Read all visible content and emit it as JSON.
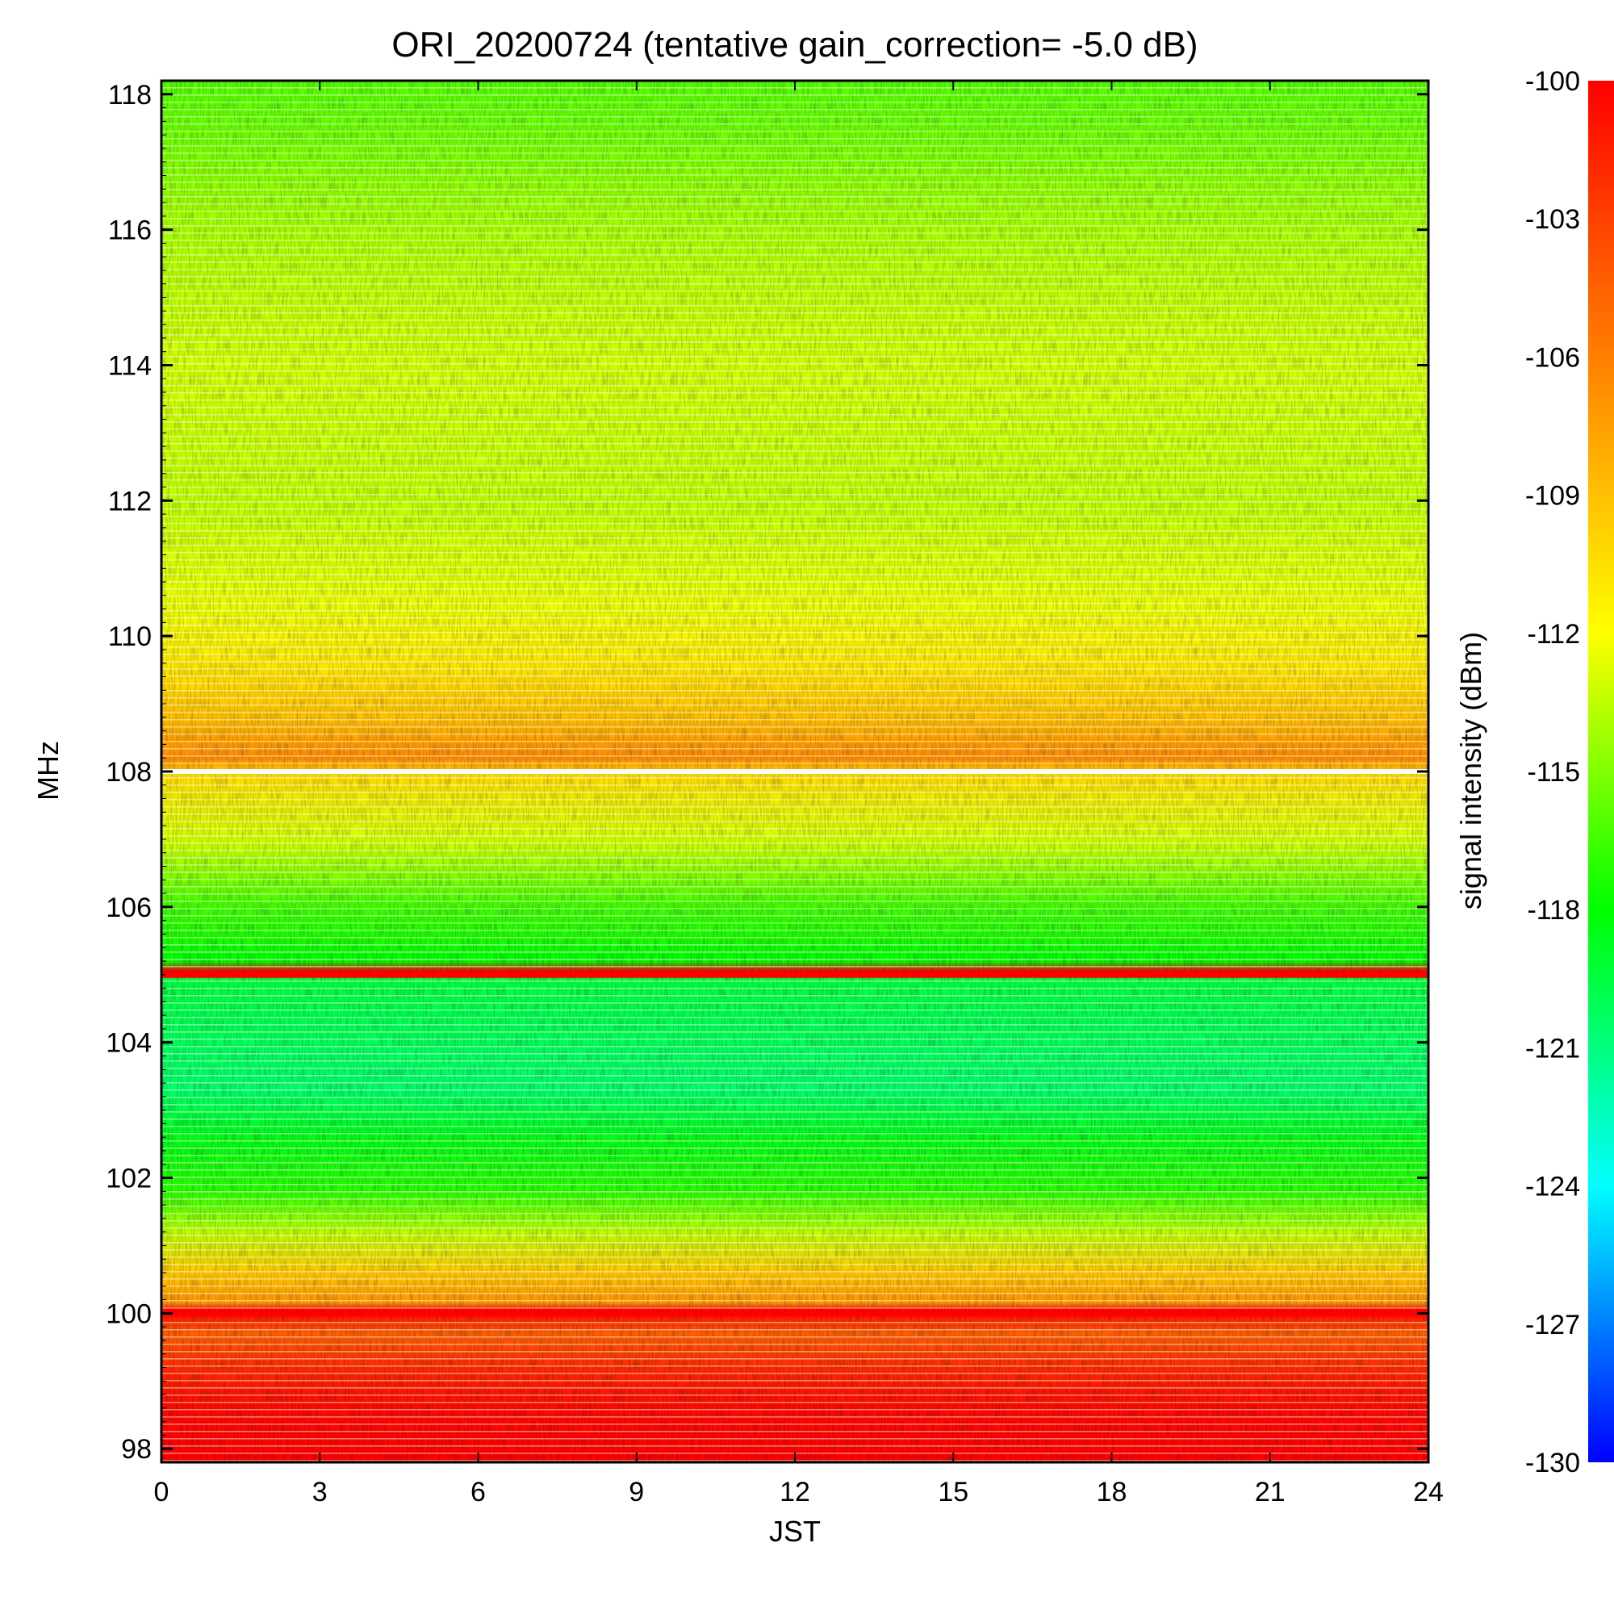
{
  "chart_data": {
    "type": "heatmap",
    "title": "ORI_20200724 (tentative gain_correction= -5.0 dB)",
    "xlabel": "JST",
    "ylabel": "MHz",
    "colorbar_label": "signal intensity (dBm)",
    "x_ticks": [
      0,
      3,
      6,
      9,
      12,
      15,
      18,
      21,
      24
    ],
    "y_ticks": [
      98,
      100,
      102,
      104,
      106,
      108,
      110,
      112,
      114,
      116,
      118
    ],
    "colorbar_ticks": [
      -100,
      -103,
      -106,
      -109,
      -112,
      -115,
      -118,
      -121,
      -124,
      -127,
      -130
    ],
    "xlim": [
      0,
      24
    ],
    "ylim": [
      97.8,
      118.2
    ],
    "clim": [
      -130,
      -100
    ],
    "colormap": [
      "#0000ff",
      "#00ffff",
      "#00ff00",
      "#ffff00",
      "#ff8000",
      "#ff0000"
    ],
    "frequency_profile": [
      {
        "freq": 97.8,
        "dbm": -100.0
      },
      {
        "freq": 98.6,
        "dbm": -100.5
      },
      {
        "freq": 99.2,
        "dbm": -102.0
      },
      {
        "freq": 99.7,
        "dbm": -104.5
      },
      {
        "freq": 100.05,
        "dbm": -100.0
      },
      {
        "freq": 100.15,
        "dbm": -107.0
      },
      {
        "freq": 100.6,
        "dbm": -109.5
      },
      {
        "freq": 101.2,
        "dbm": -113.5
      },
      {
        "freq": 101.8,
        "dbm": -117.0
      },
      {
        "freq": 102.6,
        "dbm": -118.5
      },
      {
        "freq": 103.3,
        "dbm": -120.5
      },
      {
        "freq": 104.2,
        "dbm": -120.0
      },
      {
        "freq": 104.95,
        "dbm": -119.5
      },
      {
        "freq": 105.05,
        "dbm": -100.0
      },
      {
        "freq": 105.2,
        "dbm": -118.0
      },
      {
        "freq": 106.0,
        "dbm": -116.5
      },
      {
        "freq": 107.0,
        "dbm": -113.0
      },
      {
        "freq": 107.95,
        "dbm": -110.5
      },
      {
        "freq": 108.2,
        "dbm": -106.5
      },
      {
        "freq": 108.8,
        "dbm": -109.0
      },
      {
        "freq": 109.6,
        "dbm": -111.0
      },
      {
        "freq": 110.5,
        "dbm": -112.5
      },
      {
        "freq": 112.0,
        "dbm": -113.5
      },
      {
        "freq": 114.0,
        "dbm": -113.0
      },
      {
        "freq": 116.0,
        "dbm": -114.0
      },
      {
        "freq": 117.5,
        "dbm": -115.5
      },
      {
        "freq": 118.2,
        "dbm": -116.0
      }
    ],
    "hot_lines_mhz": [
      100.0,
      105.0
    ],
    "gap_line_mhz": 108.0
  }
}
